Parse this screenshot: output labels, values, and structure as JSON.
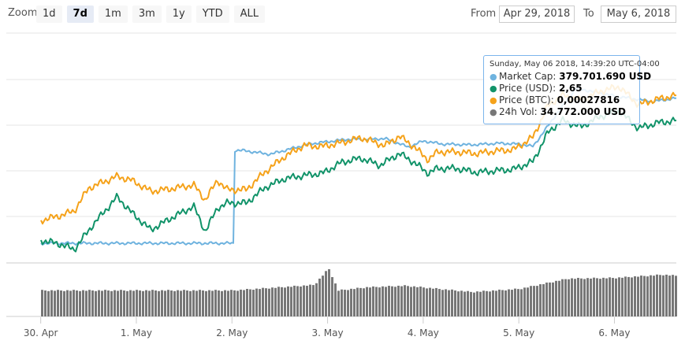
{
  "toolbar": {
    "zoom_label": "Zoom",
    "zoom_buttons": [
      "1d",
      "7d",
      "1m",
      "3m",
      "1y",
      "YTD",
      "ALL"
    ],
    "active_zoom": "7d",
    "from_label": "From",
    "from_value": "Apr 29, 2018",
    "to_label": "To",
    "to_value": "May 6, 2018"
  },
  "tooltip": {
    "date": "Sunday, May 06 2018, 14:39:20 UTC-04:00",
    "rows": [
      {
        "label": "Market Cap:",
        "value": "379.701.690 USD",
        "color": "#6fb3df"
      },
      {
        "label": "Price (USD):",
        "value": "2,65",
        "color": "#119369"
      },
      {
        "label": "Price (BTC):",
        "value": "0,00027816",
        "color": "#f5a21a"
      },
      {
        "label": "24h Vol:",
        "value": "34.772.000 USD",
        "color": "#777777"
      }
    ]
  },
  "chart_data": {
    "type": "line",
    "x_ticks": [
      "30. Apr",
      "1. May",
      "2. May",
      "3. May",
      "4. May",
      "5. May",
      "6. May"
    ],
    "x_range_days": [
      0,
      7
    ],
    "grid": true,
    "colors": {
      "market_cap": "#6fb3df",
      "price_usd": "#119369",
      "price_btc": "#f5a21a",
      "volume": "#777777"
    },
    "series_market_cap": {
      "x": [
        0,
        2.02,
        2.03,
        2.1,
        2.4,
        2.8,
        3.2,
        3.4,
        3.6,
        3.85,
        4.0,
        4.2,
        4.5,
        4.8,
        5.0,
        5.15,
        5.4,
        5.6,
        6.0,
        6.4,
        6.8,
        7.0
      ],
      "y": [
        25,
        25,
        143,
        143,
        138,
        151,
        157,
        157,
        158,
        147,
        155,
        151,
        150,
        152,
        151,
        148,
        190,
        222,
        212,
        205,
        212,
        228
      ]
    },
    "series_price_btc": {
      "x": [
        0,
        0.2,
        0.35,
        0.5,
        0.8,
        0.95,
        1.15,
        1.35,
        1.6,
        1.72,
        1.85,
        1.95,
        2.15,
        2.35,
        2.55,
        2.75,
        2.95,
        3.15,
        3.35,
        3.6,
        3.75,
        3.9,
        4.05,
        4.15,
        4.35,
        4.55,
        4.75,
        4.95,
        5.15,
        5.3,
        5.45,
        5.65,
        5.85,
        6.05,
        6.25,
        6.45,
        6.65,
        6.85,
        7.0
      ],
      "y": [
        54,
        60,
        66,
        95,
        110,
        105,
        91,
        94,
        99,
        80,
        105,
        93,
        93,
        116,
        135,
        149,
        148,
        153,
        159,
        149,
        161,
        148,
        131,
        141,
        141,
        139,
        142,
        144,
        160,
        199,
        213,
        207,
        218,
        224,
        201,
        208,
        213,
        232,
        252
      ]
    },
    "series_price_usd": {
      "x": [
        0,
        0.2,
        0.35,
        0.55,
        0.8,
        0.95,
        1.15,
        1.35,
        1.6,
        1.72,
        1.85,
        1.95,
        2.15,
        2.35,
        2.55,
        2.75,
        2.95,
        3.15,
        3.35,
        3.55,
        3.75,
        3.9,
        4.05,
        4.15,
        4.35,
        4.55,
        4.75,
        4.95,
        5.15,
        5.3,
        5.45,
        5.65,
        5.85,
        6.05,
        6.25,
        6.45,
        6.65,
        6.85,
        7.0
      ],
      "y": [
        29,
        24,
        17,
        49,
        84,
        64,
        42,
        56,
        72,
        40,
        70,
        76,
        76,
        96,
        107,
        111,
        114,
        128,
        133,
        124,
        139,
        128,
        114,
        120,
        120,
        115,
        117,
        119,
        129,
        165,
        181,
        173,
        186,
        193,
        171,
        178,
        181,
        202,
        224
      ]
    },
    "series_volume": {
      "x": [
        0,
        1.0,
        2.0,
        2.85,
        3.0,
        3.1,
        3.4,
        3.8,
        4.5,
        5.0,
        5.5,
        6.0,
        6.5,
        7.0
      ],
      "y": [
        33,
        33,
        33,
        40,
        61,
        33,
        37,
        39,
        31,
        35,
        48,
        49,
        53,
        48
      ]
    }
  }
}
